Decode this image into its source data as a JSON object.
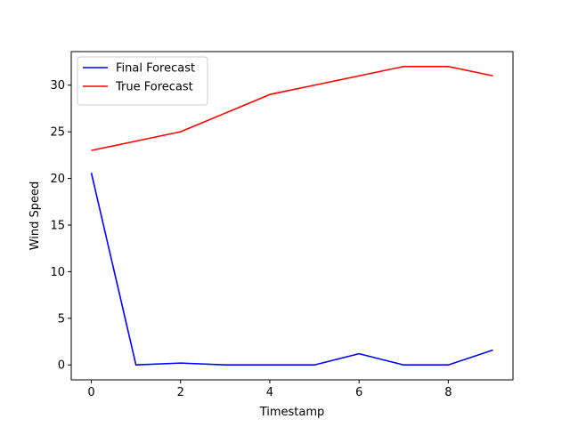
{
  "chart_data": {
    "type": "line",
    "x": [
      0,
      1,
      2,
      3,
      4,
      5,
      6,
      7,
      8,
      9
    ],
    "series": [
      {
        "name": "Final Forecast",
        "color": "#0000ff",
        "values": [
          20.6,
          0.0,
          0.2,
          0.0,
          0.0,
          0.0,
          1.2,
          0.0,
          0.0,
          1.6
        ]
      },
      {
        "name": "True Forecast",
        "color": "#ff0000",
        "values": [
          23,
          24,
          25,
          27,
          29,
          30,
          31,
          32,
          32,
          31
        ]
      }
    ],
    "title": "",
    "xlabel": "Timestamp",
    "ylabel": "Wind Speed",
    "xlim": [
      -0.45,
      9.45
    ],
    "ylim": [
      -1.6,
      33.6
    ],
    "xticks": [
      0,
      2,
      4,
      6,
      8
    ],
    "yticks": [
      0,
      5,
      10,
      15,
      20,
      25,
      30
    ],
    "grid": false,
    "legend": "top-left"
  }
}
